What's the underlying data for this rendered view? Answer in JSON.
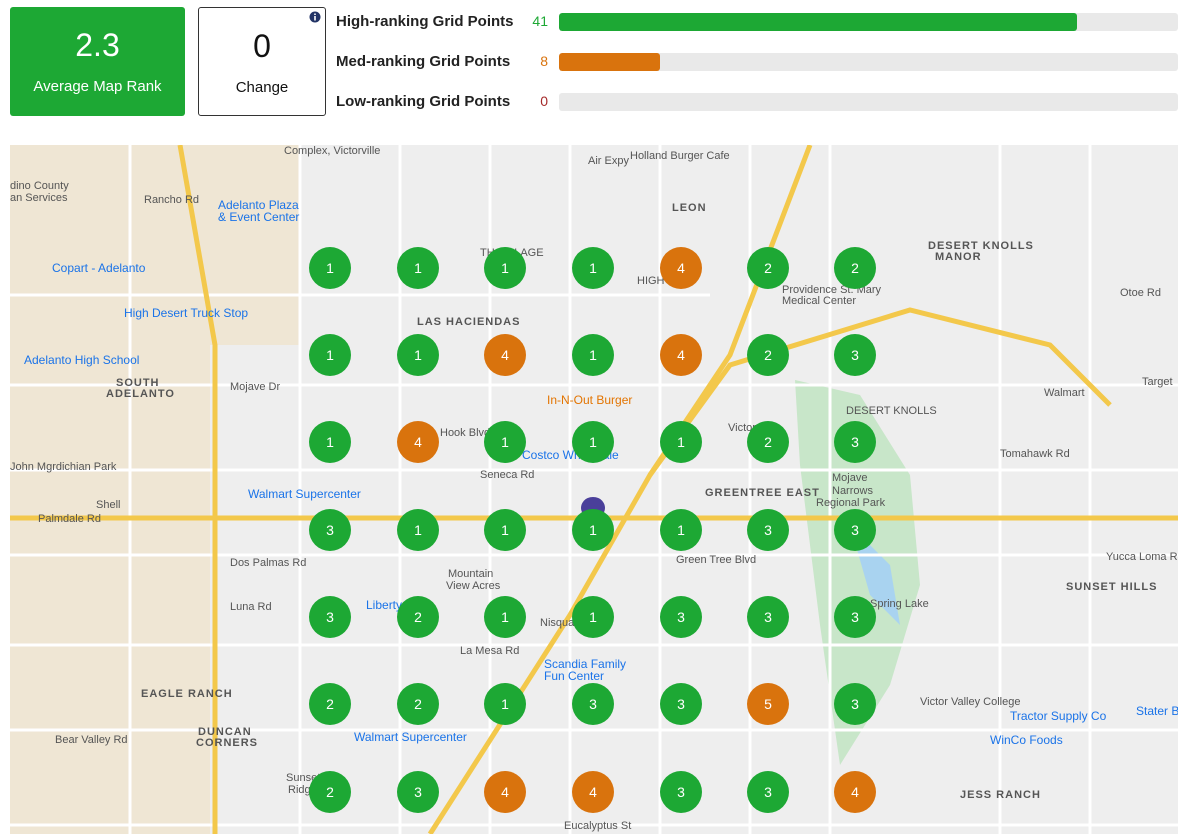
{
  "summary": {
    "average_rank": "2.3",
    "average_rank_label": "Average Map Rank",
    "change": "0",
    "change_label": "Change"
  },
  "bars": [
    {
      "label": "High-ranking Grid Points",
      "value": 41
    },
    {
      "label": "Med-ranking Grid Points",
      "value": 8
    },
    {
      "label": "Low-ranking Grid Points",
      "value": 0
    }
  ],
  "grid": {
    "rows": [
      [
        1,
        1,
        1,
        1,
        4,
        2,
        2
      ],
      [
        1,
        1,
        4,
        1,
        4,
        2,
        3
      ],
      [
        1,
        4,
        1,
        1,
        1,
        2,
        3
      ],
      [
        3,
        1,
        1,
        1,
        1,
        3,
        3
      ],
      [
        3,
        2,
        1,
        1,
        3,
        3,
        3
      ],
      [
        2,
        2,
        1,
        3,
        3,
        5,
        3
      ],
      [
        2,
        3,
        4,
        4,
        3,
        3,
        4
      ]
    ]
  },
  "map": {
    "labels": [
      "Complex, Victorville",
      "Air Expy",
      "Holland Burger Cafe",
      "dino County",
      "an Services",
      "Rancho Rd",
      "Adelanto Plaza",
      "& Event Center",
      "LEON",
      "Copart - Adelanto",
      "TH VILLAGE",
      "HIGH",
      "Providence St. Mary",
      "Medical Center",
      "DESERT KNOLLS",
      "MANOR",
      "High Desert Truck Stop",
      "LAS HACIENDAS",
      "Adelanto High School",
      "SOUTH",
      "ADELANTO",
      "Mojave Dr",
      "In-N-Out Burger",
      "Victorville",
      "DESERT KNOLLS",
      "Walmart",
      "Target",
      "Hook Blvd",
      "Costco Wholesale",
      "Seneca Rd",
      "John Mgrdichian Park",
      "Walmart Supercenter",
      "GREENTREE EAST",
      "Mojave",
      "Narrows",
      "Regional Park",
      "Shell",
      "Palmdale Rd",
      "Mountain",
      "View Acres",
      "Dos Palmas Rd",
      "Green Tree Blvd",
      "Yucca Loma Rd",
      "SUNSET HILLS",
      "Liberty",
      "Luna Rd",
      "Spring Lake",
      "Nisqualli Rd",
      "Scandia Family",
      "Fun Center",
      "La Mesa Rd",
      "EAGLE RANCH",
      "Victor Valley College",
      "Tractor Supply Co",
      "Stater Bros",
      "DUNCAN",
      "CORNERS",
      "Walmart Supercenter",
      "Bear Valley Rd",
      "WinCo Foods",
      "JESS RANCH",
      "Sunset",
      "Ridge",
      "Eucalyptus St",
      "Tomahawk Rd",
      "Otoe Rd"
    ]
  }
}
